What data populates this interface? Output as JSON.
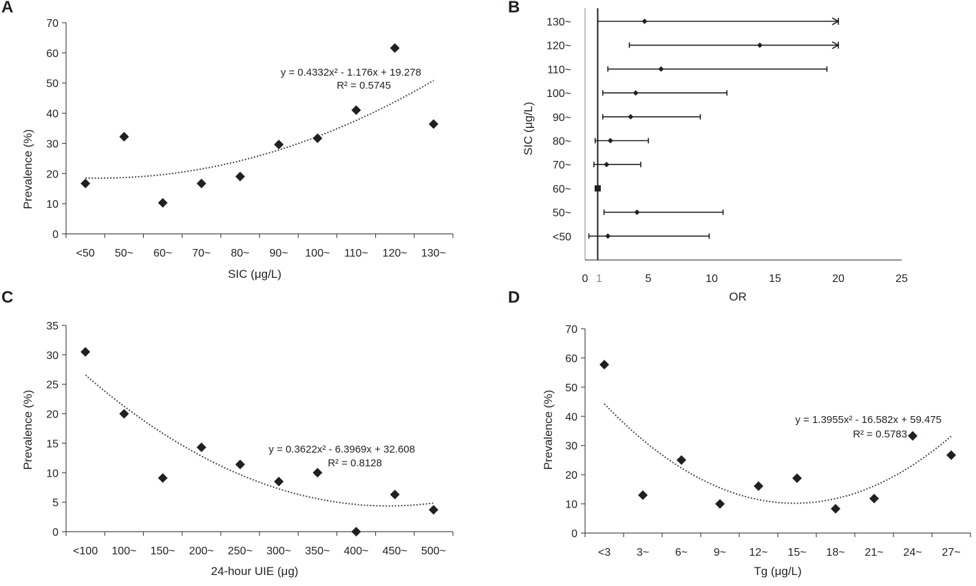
{
  "chart_data": [
    {
      "id": "A",
      "type": "scatter",
      "panel_label": "A",
      "xlabel": "SIC (μg/L)",
      "ylabel": "Prevalence (%)",
      "categories": [
        "<50",
        "50~",
        "60~",
        "70~",
        "80~",
        "90~",
        "100~",
        "110~",
        "120~",
        "130~"
      ],
      "values": [
        16.7,
        32.2,
        10.3,
        16.7,
        19.0,
        29.6,
        31.7,
        41.0,
        61.6,
        36.4
      ],
      "ylim": [
        0,
        70
      ],
      "yticks": [
        0,
        10,
        20,
        30,
        40,
        50,
        60,
        70
      ],
      "trendline": {
        "type": "poly2",
        "a": 0.4332,
        "b": -1.176,
        "c": 19.278
      },
      "equation": "y = 0.4332x² - 1.176x + 19.278",
      "r2": "R² = 0.5745"
    },
    {
      "id": "B",
      "type": "forest",
      "panel_label": "B",
      "xlabel": "OR",
      "ylabel": "SIC (μg/L)",
      "xlim": [
        0,
        25
      ],
      "xticks": [
        "0",
        "1",
        "5",
        "10",
        "15",
        "20",
        "25"
      ],
      "xtick_values": [
        0,
        1,
        5,
        10,
        15,
        20,
        25
      ],
      "reference_value": 1,
      "rows": [
        {
          "label": "130~",
          "or": 4.7,
          "lower": 1.0,
          "upper": 20.0,
          "arrow": true
        },
        {
          "label": "120~",
          "or": 13.8,
          "lower": 3.5,
          "upper": 20.0,
          "arrow": true
        },
        {
          "label": "110~",
          "or": 6.0,
          "lower": 1.8,
          "upper": 19.1,
          "arrow": false
        },
        {
          "label": "100~",
          "or": 4.0,
          "lower": 1.4,
          "upper": 11.2,
          "arrow": false
        },
        {
          "label": "90~",
          "or": 3.6,
          "lower": 1.4,
          "upper": 9.1,
          "arrow": false
        },
        {
          "label": "80~",
          "or": 2.0,
          "lower": 0.8,
          "upper": 5.0,
          "arrow": false
        },
        {
          "label": "70~",
          "or": 1.7,
          "lower": 0.7,
          "upper": 4.4,
          "arrow": false
        },
        {
          "label": "60~",
          "or": 1.0,
          "lower": 1.0,
          "upper": 1.0,
          "arrow": false,
          "reference": true
        },
        {
          "label": "50~",
          "or": 4.1,
          "lower": 1.5,
          "upper": 10.9,
          "arrow": false
        },
        {
          "label": "<50",
          "or": 1.8,
          "lower": 0.3,
          "upper": 9.8,
          "arrow": false
        }
      ]
    },
    {
      "id": "C",
      "type": "scatter",
      "panel_label": "C",
      "xlabel": "24-hour UIE (μg)",
      "ylabel": "Prevalence (%)",
      "categories": [
        "<100",
        "100~",
        "150~",
        "200~",
        "250~",
        "300~",
        "350~",
        "400~",
        "450~",
        "500~"
      ],
      "values": [
        30.5,
        20.0,
        9.1,
        14.3,
        11.4,
        8.5,
        10.0,
        0.0,
        6.3,
        3.7
      ],
      "ylim": [
        0,
        35
      ],
      "yticks": [
        0,
        5,
        10,
        15,
        20,
        25,
        30,
        35
      ],
      "trendline": {
        "type": "poly2",
        "a": 0.3622,
        "b": -6.3969,
        "c": 32.608
      },
      "equation": "y = 0.3622x² - 6.3969x + 32.608",
      "r2": "R² = 0.8128"
    },
    {
      "id": "D",
      "type": "scatter",
      "panel_label": "D",
      "xlabel": "Tg  (μg/L)",
      "ylabel": "Prevalence (%)",
      "categories": [
        "<3",
        "3~",
        "6~",
        "9~",
        "12~",
        "15~",
        "18~",
        "21~",
        "24~",
        "27~"
      ],
      "values": [
        57.7,
        13.0,
        25.0,
        10.0,
        16.1,
        18.8,
        8.3,
        11.8,
        33.3,
        26.7
      ],
      "ylim": [
        0,
        70
      ],
      "yticks": [
        0,
        10,
        20,
        30,
        40,
        50,
        60,
        70
      ],
      "trendline": {
        "type": "poly2",
        "a": 1.3955,
        "b": -16.582,
        "c": 59.475
      },
      "equation": "y = 1.3955x² - 16.582x + 59.475",
      "r2": "R² = 0.5783"
    }
  ]
}
